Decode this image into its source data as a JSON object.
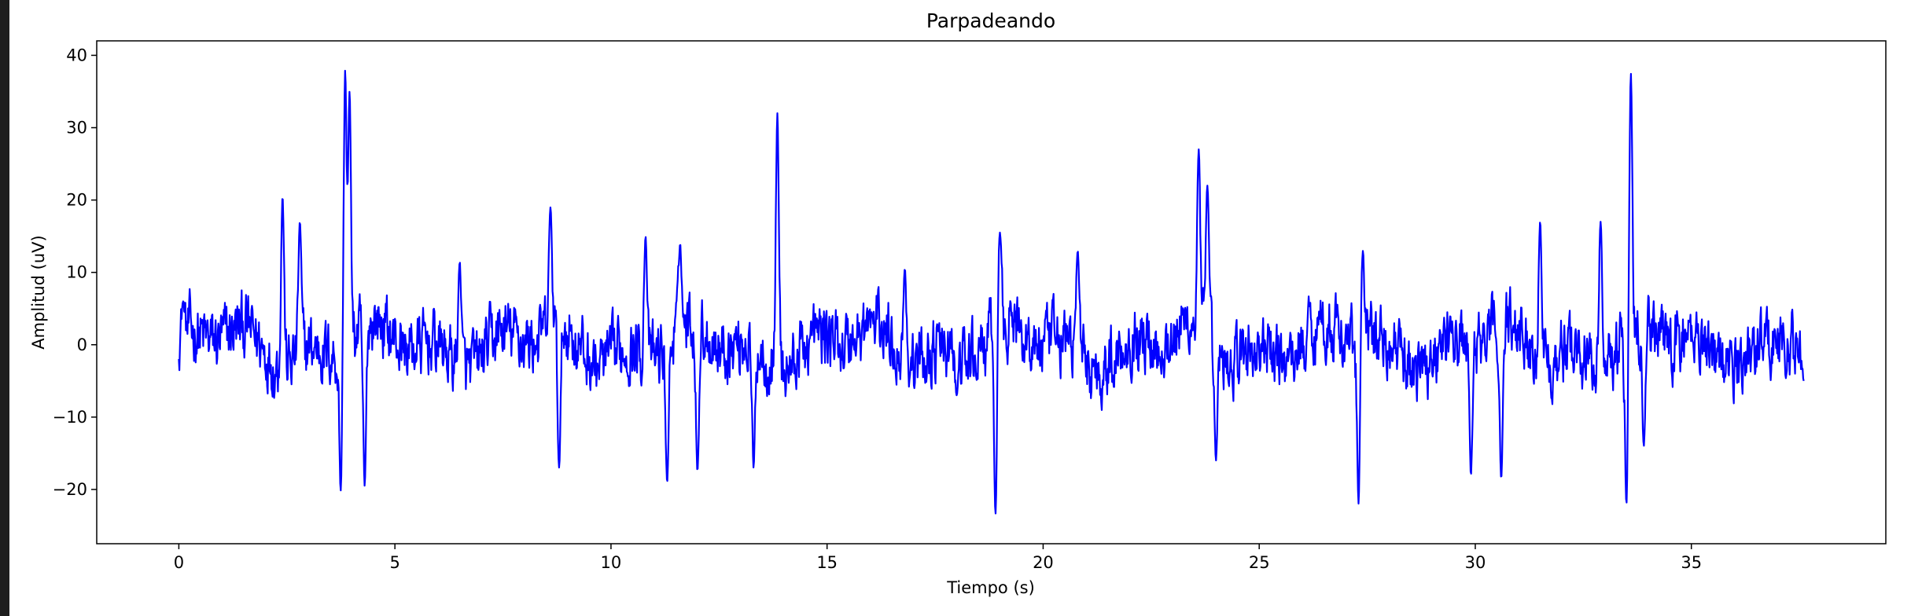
{
  "window": {
    "background": "#1e1e1e"
  },
  "chart_data": {
    "type": "line",
    "title": "Parpadeando",
    "xlabel": "Tiempo (s)",
    "ylabel": "Amplitud (uV)",
    "xlim": [
      -1.9,
      39.5
    ],
    "ylim": [
      -27.5,
      42
    ],
    "xticks": [
      0,
      5,
      10,
      15,
      20,
      25,
      30,
      35
    ],
    "xtick_labels": [
      "0",
      "5",
      "10",
      "15",
      "20",
      "25",
      "30",
      "35"
    ],
    "yticks": [
      -20,
      -10,
      0,
      10,
      20,
      30,
      40
    ],
    "ytick_labels": [
      "−20",
      "−10",
      "0",
      "10",
      "20",
      "30",
      "40"
    ],
    "grid": false,
    "legend": "none",
    "series": [
      {
        "color": "#0000ff",
        "x_start": 0,
        "x_end": 37.6,
        "noise_amplitude": 5,
        "peaks": [
          {
            "x": 0.1,
            "y": 6
          },
          {
            "x": 2.4,
            "y": 20.5
          },
          {
            "x": 2.8,
            "y": 17
          },
          {
            "x": 3.75,
            "y": -21
          },
          {
            "x": 3.85,
            "y": 38
          },
          {
            "x": 3.95,
            "y": 35
          },
          {
            "x": 4.3,
            "y": -19.5
          },
          {
            "x": 6.5,
            "y": 11.5
          },
          {
            "x": 8.6,
            "y": 19
          },
          {
            "x": 8.8,
            "y": -17
          },
          {
            "x": 10.8,
            "y": 15
          },
          {
            "x": 11.6,
            "y": 14
          },
          {
            "x": 12.0,
            "y": -17.5
          },
          {
            "x": 11.3,
            "y": -19
          },
          {
            "x": 13.3,
            "y": -17
          },
          {
            "x": 13.85,
            "y": 32
          },
          {
            "x": 16.8,
            "y": 10.5
          },
          {
            "x": 18.0,
            "y": -7
          },
          {
            "x": 18.9,
            "y": -24
          },
          {
            "x": 19.0,
            "y": 15.5
          },
          {
            "x": 20.8,
            "y": 13
          },
          {
            "x": 23.6,
            "y": 27
          },
          {
            "x": 23.8,
            "y": 22
          },
          {
            "x": 24.0,
            "y": -16
          },
          {
            "x": 27.3,
            "y": -22.5
          },
          {
            "x": 27.4,
            "y": 13
          },
          {
            "x": 29.9,
            "y": -18
          },
          {
            "x": 30.6,
            "y": -18.5
          },
          {
            "x": 31.5,
            "y": 17
          },
          {
            "x": 32.9,
            "y": 17
          },
          {
            "x": 33.5,
            "y": -23
          },
          {
            "x": 33.6,
            "y": 37.5
          },
          {
            "x": 33.9,
            "y": -14
          },
          {
            "x": 37.6,
            "y": -5
          }
        ]
      }
    ]
  }
}
